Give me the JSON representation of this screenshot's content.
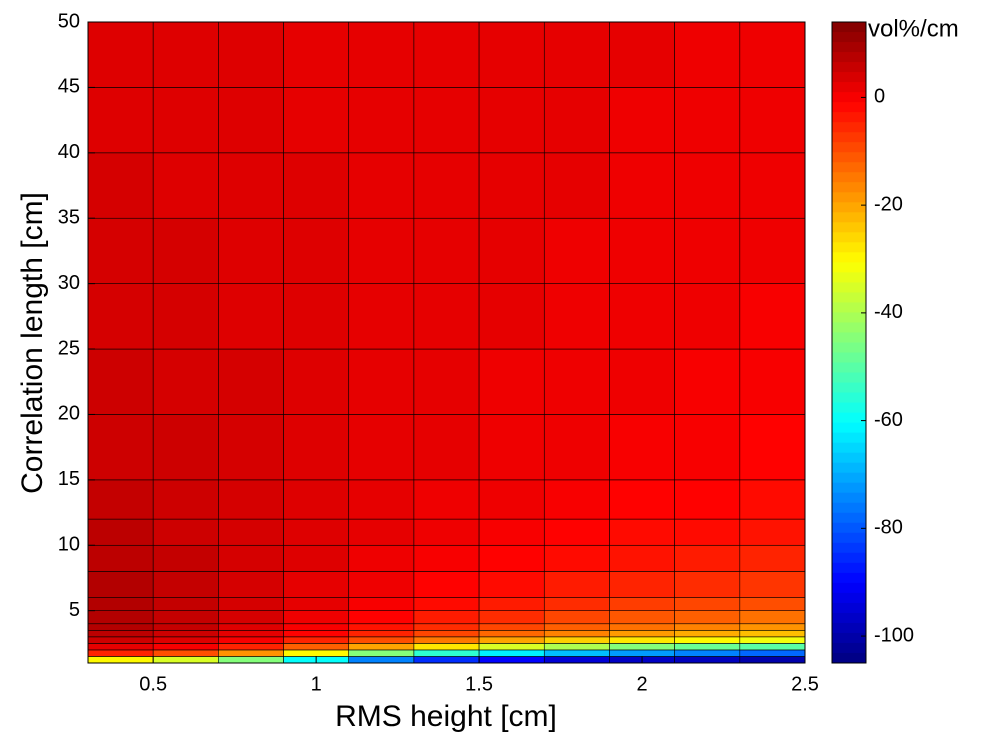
{
  "chart_data": {
    "type": "heatmap",
    "x_label": "RMS height [cm]",
    "y_label": "Correlation length [cm]",
    "colorbar_label": "vol%/cm",
    "colormap": "jet",
    "xlim": [
      0.3,
      2.5
    ],
    "xticks": [
      0.5,
      1,
      1.5,
      2,
      2.5
    ],
    "ylim": [
      1,
      50
    ],
    "yticks": [
      5,
      10,
      15,
      20,
      25,
      30,
      35,
      40,
      45,
      50
    ],
    "clim": [
      -105,
      14
    ],
    "cticks": [
      0,
      -20,
      -40,
      -60,
      -80,
      -100
    ],
    "x_bins": [
      0.3,
      0.5,
      0.7,
      0.9,
      1.1,
      1.3,
      1.5,
      1.7,
      1.9,
      2.1,
      2.3,
      2.5
    ],
    "y_bins": [
      1,
      1.5,
      2,
      2.5,
      3,
      3.5,
      4,
      5,
      6,
      8,
      10,
      12,
      15,
      20,
      25,
      30,
      35,
      40,
      45,
      50
    ],
    "z": [
      [
        -30,
        -35,
        -45,
        -60,
        -75,
        -85,
        -90,
        -95,
        -97,
        -98,
        -100
      ],
      [
        -5,
        -10,
        -18,
        -30,
        -45,
        -55,
        -62,
        -68,
        -72,
        -75,
        -78
      ],
      [
        2,
        0,
        -5,
        -12,
        -20,
        -28,
        -35,
        -40,
        -45,
        -48,
        -50
      ],
      [
        5,
        3,
        0,
        -5,
        -10,
        -15,
        -20,
        -25,
        -28,
        -30,
        -32
      ],
      [
        7,
        5,
        2,
        -1,
        -5,
        -9,
        -13,
        -16,
        -19,
        -21,
        -23
      ],
      [
        8,
        6,
        3,
        0,
        -3,
        -6,
        -9,
        -12,
        -14,
        -16,
        -18
      ],
      [
        8,
        6,
        4,
        1,
        -1,
        -4,
        -6,
        -9,
        -11,
        -12,
        -14
      ],
      [
        8,
        6,
        4,
        2,
        0,
        -2,
        -4,
        -6,
        -8,
        -9,
        -10
      ],
      [
        8,
        6,
        4,
        2,
        1,
        -1,
        -2,
        -4,
        -5,
        -6,
        -7
      ],
      [
        7,
        6,
        4,
        3,
        1,
        0,
        -1,
        -2,
        -3,
        -4,
        -5
      ],
      [
        7,
        5,
        4,
        3,
        2,
        1,
        0,
        -1,
        -2,
        -2,
        -3
      ],
      [
        6,
        5,
        4,
        3,
        2,
        1,
        1,
        0,
        -1,
        -1,
        -2
      ],
      [
        5,
        5,
        4,
        3,
        2,
        2,
        1,
        1,
        0,
        0,
        -1
      ],
      [
        5,
        4,
        4,
        3,
        2,
        2,
        1,
        1,
        1,
        0,
        0
      ],
      [
        4,
        4,
        3,
        3,
        2,
        2,
        2,
        1,
        1,
        1,
        0
      ],
      [
        4,
        4,
        3,
        3,
        2,
        2,
        2,
        1,
        1,
        1,
        1
      ],
      [
        4,
        3,
        3,
        3,
        2,
        2,
        2,
        2,
        1,
        1,
        1
      ],
      [
        3,
        3,
        3,
        2,
        2,
        2,
        2,
        2,
        1,
        1,
        1
      ],
      [
        3,
        3,
        3,
        2,
        2,
        2,
        2,
        2,
        2,
        1,
        1
      ]
    ]
  }
}
